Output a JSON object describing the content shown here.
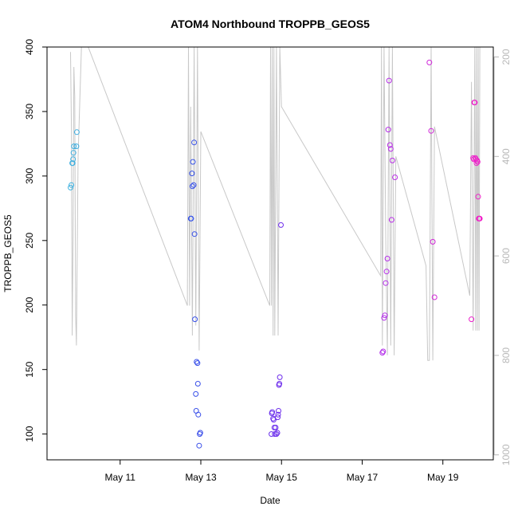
{
  "chart_data": {
    "type": "scatter",
    "title": "ATOM4 Northbound TROPPB_GEOS5",
    "xlabel": "Date",
    "ylabel": "TROPPB_GEOS5",
    "x_ticks": [
      "May 11",
      "May 13",
      "May 15",
      "May 17",
      "May 19"
    ],
    "y_ticks": [
      100,
      150,
      200,
      250,
      300,
      350,
      400
    ],
    "ylim": [
      80,
      400
    ],
    "xlim": [
      "2018-05-09 04:30",
      "2018-05-20 06:00"
    ],
    "secondary_axis": {
      "position": "right",
      "ticks": [
        200,
        400,
        600,
        800,
        1000
      ],
      "range_top": 180,
      "range_bottom": 1010,
      "reversed": true,
      "color": "#b8b8b8"
    },
    "point_color_gradient": [
      "#3fb2e0",
      "#2a5be8",
      "#6a2cec",
      "#b030ec",
      "#f020c8"
    ],
    "grid": false,
    "legend": "none",
    "points": [
      {
        "t": "2018-05-09 18:30",
        "y": 291
      },
      {
        "t": "2018-05-09 19:00",
        "y": 293
      },
      {
        "t": "2018-05-09 19:30",
        "y": 310
      },
      {
        "t": "2018-05-09 19:45",
        "y": 310
      },
      {
        "t": "2018-05-09 20:00",
        "y": 313
      },
      {
        "t": "2018-05-09 20:15",
        "y": 318
      },
      {
        "t": "2018-05-09 20:30",
        "y": 323
      },
      {
        "t": "2018-05-09 22:00",
        "y": 323
      },
      {
        "t": "2018-05-09 22:15",
        "y": 334
      },
      {
        "t": "2018-05-12 18:00",
        "y": 267
      },
      {
        "t": "2018-05-12 18:15",
        "y": 267
      },
      {
        "t": "2018-05-12 18:45",
        "y": 302
      },
      {
        "t": "2018-05-12 19:00",
        "y": 292
      },
      {
        "t": "2018-05-12 19:15",
        "y": 311
      },
      {
        "t": "2018-05-12 19:45",
        "y": 293
      },
      {
        "t": "2018-05-12 20:00",
        "y": 326
      },
      {
        "t": "2018-05-12 20:15",
        "y": 255
      },
      {
        "t": "2018-05-12 20:30",
        "y": 189
      },
      {
        "t": "2018-05-12 21:00",
        "y": 131
      },
      {
        "t": "2018-05-12 21:15",
        "y": 118
      },
      {
        "t": "2018-05-12 21:30",
        "y": 156
      },
      {
        "t": "2018-05-12 22:00",
        "y": 155
      },
      {
        "t": "2018-05-12 22:15",
        "y": 139
      },
      {
        "t": "2018-05-12 22:30",
        "y": 115
      },
      {
        "t": "2018-05-12 23:00",
        "y": 91
      },
      {
        "t": "2018-05-12 23:20",
        "y": 100
      },
      {
        "t": "2018-05-12 23:40",
        "y": 101
      },
      {
        "t": "2018-05-14 18:00",
        "y": 100
      },
      {
        "t": "2018-05-14 18:15",
        "y": 116
      },
      {
        "t": "2018-05-14 18:30",
        "y": 117
      },
      {
        "t": "2018-05-14 19:00",
        "y": 112
      },
      {
        "t": "2018-05-14 19:20",
        "y": 111
      },
      {
        "t": "2018-05-14 19:45",
        "y": 105
      },
      {
        "t": "2018-05-14 20:00",
        "y": 100
      },
      {
        "t": "2018-05-14 20:30",
        "y": 105
      },
      {
        "t": "2018-05-14 21:00",
        "y": 100
      },
      {
        "t": "2018-05-14 21:30",
        "y": 101
      },
      {
        "t": "2018-05-14 21:45",
        "y": 113
      },
      {
        "t": "2018-05-14 22:00",
        "y": 115
      },
      {
        "t": "2018-05-14 22:15",
        "y": 118
      },
      {
        "t": "2018-05-14 22:30",
        "y": 138
      },
      {
        "t": "2018-05-14 22:45",
        "y": 139
      },
      {
        "t": "2018-05-14 23:00",
        "y": 144
      },
      {
        "t": "2018-05-14 23:40",
        "y": 262
      },
      {
        "t": "2018-05-17 12:00",
        "y": 163
      },
      {
        "t": "2018-05-17 12:30",
        "y": 164
      },
      {
        "t": "2018-05-17 13:00",
        "y": 190
      },
      {
        "t": "2018-05-17 13:30",
        "y": 192
      },
      {
        "t": "2018-05-17 14:00",
        "y": 217
      },
      {
        "t": "2018-05-17 14:30",
        "y": 226
      },
      {
        "t": "2018-05-17 15:00",
        "y": 236
      },
      {
        "t": "2018-05-17 15:30",
        "y": 336
      },
      {
        "t": "2018-05-17 16:00",
        "y": 374
      },
      {
        "t": "2018-05-17 16:30",
        "y": 324
      },
      {
        "t": "2018-05-17 17:00",
        "y": 321
      },
      {
        "t": "2018-05-17 17:30",
        "y": 266
      },
      {
        "t": "2018-05-17 18:00",
        "y": 312
      },
      {
        "t": "2018-05-17 19:30",
        "y": 299
      },
      {
        "t": "2018-05-18 16:00",
        "y": 388
      },
      {
        "t": "2018-05-18 17:00",
        "y": 335
      },
      {
        "t": "2018-05-18 18:00",
        "y": 249
      },
      {
        "t": "2018-05-18 19:00",
        "y": 206
      },
      {
        "t": "2018-05-19 17:00",
        "y": 189
      },
      {
        "t": "2018-05-19 18:00",
        "y": 314
      },
      {
        "t": "2018-05-19 18:20",
        "y": 313
      },
      {
        "t": "2018-05-19 18:40",
        "y": 357
      },
      {
        "t": "2018-05-19 19:00",
        "y": 357
      },
      {
        "t": "2018-05-19 19:20",
        "y": 314
      },
      {
        "t": "2018-05-19 19:40",
        "y": 313
      },
      {
        "t": "2018-05-19 20:00",
        "y": 310
      },
      {
        "t": "2018-05-19 20:20",
        "y": 312
      },
      {
        "t": "2018-05-19 20:40",
        "y": 311
      },
      {
        "t": "2018-05-19 21:00",
        "y": 284
      },
      {
        "t": "2018-05-19 21:20",
        "y": 267
      },
      {
        "t": "2018-05-19 21:40",
        "y": 267
      },
      {
        "t": "2018-05-19 22:00",
        "y": 267
      }
    ],
    "profile_secondary": [
      {
        "t": "2018-05-09 18:30",
        "v": 190
      },
      {
        "t": "2018-05-09 19:00",
        "v": 340
      },
      {
        "t": "2018-05-09 19:30",
        "v": 760
      },
      {
        "t": "2018-05-09 20:00",
        "v": 560
      },
      {
        "t": "2018-05-09 20:30",
        "v": 220
      },
      {
        "t": "2018-05-09 21:00",
        "v": 280
      },
      {
        "t": "2018-05-09 21:30",
        "v": 720
      },
      {
        "t": "2018-05-09 22:00",
        "v": 780
      },
      {
        "t": "2018-05-09 23:00",
        "v": 400
      },
      {
        "t": "2018-05-10 01:00",
        "v": 180
      },
      {
        "t": "2018-05-10 03:00",
        "v": 180
      },
      {
        "t": "2018-05-10 05:00",
        "v": 180
      },
      {
        "t": "2018-05-12 16:00",
        "v": 700
      },
      {
        "t": "2018-05-12 16:40",
        "v": 180
      },
      {
        "t": "2018-05-12 17:20",
        "v": 700
      },
      {
        "t": "2018-05-12 18:00",
        "v": 300
      },
      {
        "t": "2018-05-12 19:00",
        "v": 760
      },
      {
        "t": "2018-05-12 20:00",
        "v": 180
      },
      {
        "t": "2018-05-12 21:00",
        "v": 740
      },
      {
        "t": "2018-05-12 22:00",
        "v": 180
      },
      {
        "t": "2018-05-12 23:00",
        "v": 790
      },
      {
        "t": "2018-05-13 00:00",
        "v": 350
      },
      {
        "t": "2018-05-14 17:00",
        "v": 700
      },
      {
        "t": "2018-05-14 17:30",
        "v": 180
      },
      {
        "t": "2018-05-14 18:00",
        "v": 700
      },
      {
        "t": "2018-05-14 18:30",
        "v": 180
      },
      {
        "t": "2018-05-14 19:00",
        "v": 760
      },
      {
        "t": "2018-05-14 19:30",
        "v": 180
      },
      {
        "t": "2018-05-14 20:00",
        "v": 760
      },
      {
        "t": "2018-05-14 21:00",
        "v": 180
      },
      {
        "t": "2018-05-14 22:00",
        "v": 760
      },
      {
        "t": "2018-05-14 23:00",
        "v": 180
      },
      {
        "t": "2018-05-15 00:00",
        "v": 300
      },
      {
        "t": "2018-05-17 11:00",
        "v": 640
      },
      {
        "t": "2018-05-17 11:30",
        "v": 180
      },
      {
        "t": "2018-05-17 12:00",
        "v": 780
      },
      {
        "t": "2018-05-17 13:00",
        "v": 180
      },
      {
        "t": "2018-05-17 14:00",
        "v": 560
      },
      {
        "t": "2018-05-17 15:00",
        "v": 800
      },
      {
        "t": "2018-05-17 16:00",
        "v": 180
      },
      {
        "t": "2018-05-17 17:00",
        "v": 780
      },
      {
        "t": "2018-05-17 18:00",
        "v": 180
      },
      {
        "t": "2018-05-17 19:00",
        "v": 800
      },
      {
        "t": "2018-05-17 20:00",
        "v": 400
      },
      {
        "t": "2018-05-18 14:00",
        "v": 620
      },
      {
        "t": "2018-05-18 15:00",
        "v": 810
      },
      {
        "t": "2018-05-18 16:00",
        "v": 810
      },
      {
        "t": "2018-05-18 17:00",
        "v": 180
      },
      {
        "t": "2018-05-18 18:00",
        "v": 810
      },
      {
        "t": "2018-05-18 19:00",
        "v": 340
      },
      {
        "t": "2018-05-19 16:00",
        "v": 680
      },
      {
        "t": "2018-05-19 17:00",
        "v": 250
      },
      {
        "t": "2018-05-19 18:00",
        "v": 750
      },
      {
        "t": "2018-05-19 19:00",
        "v": 180
      },
      {
        "t": "2018-05-19 19:30",
        "v": 750
      },
      {
        "t": "2018-05-19 20:00",
        "v": 180
      },
      {
        "t": "2018-05-19 20:30",
        "v": 750
      },
      {
        "t": "2018-05-19 21:00",
        "v": 180
      },
      {
        "t": "2018-05-19 21:30",
        "v": 750
      },
      {
        "t": "2018-05-19 22:00",
        "v": 180
      }
    ]
  }
}
